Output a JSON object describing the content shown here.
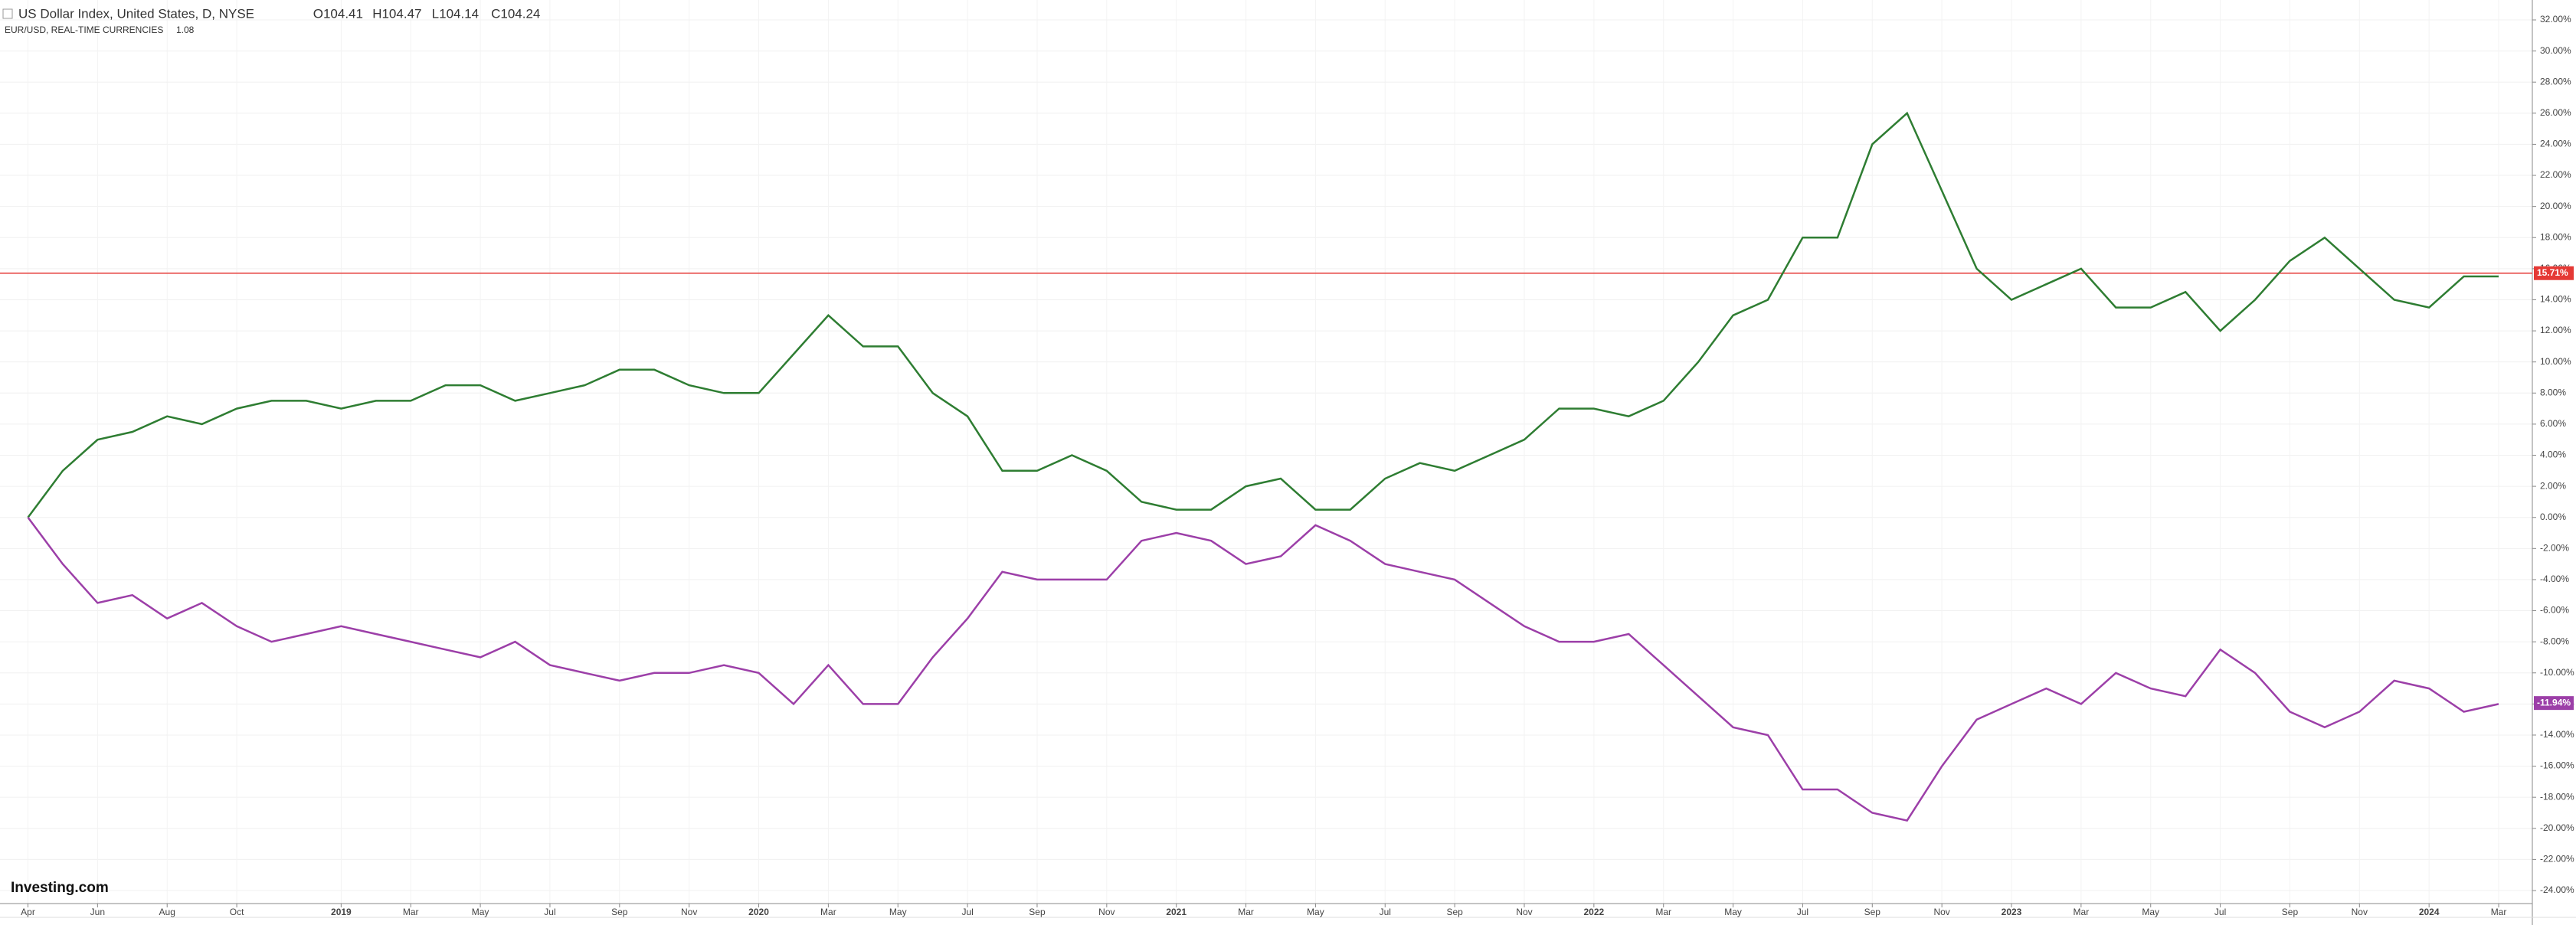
{
  "chart_data": {
    "type": "line",
    "title": "US Dollar Index, United States, D, NYSE",
    "ohlc": [
      "O104.41",
      "H104.47",
      "L104.14",
      "C104.24"
    ],
    "subtitle": "EUR/USD, REAL-TIME CURRENCIES",
    "subtitle_value": "1.08",
    "logo": "Investing.com",
    "categories": [
      "Apr",
      null,
      "Jun",
      null,
      "Aug",
      null,
      "Oct",
      null,
      null,
      "2019",
      null,
      "Mar",
      null,
      "May",
      null,
      "Jul",
      null,
      "Sep",
      null,
      "Nov",
      null,
      "2020",
      null,
      "Mar",
      null,
      "May",
      null,
      "Jul",
      null,
      "Sep",
      null,
      "Nov",
      null,
      "2021",
      null,
      "Mar",
      null,
      "May",
      null,
      "Jul",
      null,
      "Sep",
      null,
      "Nov",
      null,
      "2022",
      null,
      "Mar",
      null,
      "May",
      null,
      "Jul",
      null,
      "Sep",
      null,
      "Nov",
      null,
      "2023",
      null,
      "Mar",
      null,
      "May",
      null,
      "Jul",
      null,
      "Sep",
      null,
      "Nov",
      null,
      "2024",
      null,
      "Mar"
    ],
    "series": [
      {
        "name": "US Dollar Index",
        "color": "#2e7d32",
        "last_value": {
          "value": 15.71,
          "label": "15.71%"
        },
        "line_color": "#e53935",
        "values": [
          0,
          3,
          5,
          5.5,
          6.5,
          6,
          7,
          7.5,
          7.5,
          7,
          7.5,
          7.5,
          8.5,
          8.5,
          7.5,
          8,
          8.5,
          9.5,
          9.5,
          8.5,
          8,
          8,
          10.5,
          13,
          11,
          11,
          8,
          6.5,
          3,
          3,
          4,
          3,
          1,
          0.5,
          0.5,
          2,
          2.5,
          0.5,
          0.5,
          2.5,
          3.5,
          3,
          4,
          5,
          7,
          7,
          6.5,
          7.5,
          10,
          13,
          14,
          18,
          18,
          24,
          26,
          21,
          16,
          14,
          15,
          16,
          13.5,
          13.5,
          14.5,
          12,
          14,
          16.5,
          18,
          16,
          14,
          13.5,
          15.5,
          15.5
        ]
      },
      {
        "name": "EUR/USD",
        "color": "#9c3fa8",
        "last_value": {
          "value": -11.94,
          "label": "-11.94%"
        },
        "values": [
          0,
          -3,
          -5.5,
          -5,
          -6.5,
          -5.5,
          -7,
          -8,
          -7.5,
          -7,
          -7.5,
          -8,
          -8.5,
          -9,
          -8,
          -9.5,
          -10,
          -10.5,
          -10,
          -10,
          -9.5,
          -10,
          -12,
          -9.5,
          -12,
          -12,
          -9,
          -6.5,
          -3.5,
          -4,
          -4,
          -4,
          -1.5,
          -1,
          -1.5,
          -3,
          -2.5,
          -0.5,
          -1.5,
          -3,
          -3.5,
          -4,
          -5.5,
          -7,
          -8,
          -8,
          -7.5,
          -9.5,
          -11.5,
          -13.5,
          -14,
          -17.5,
          -17.5,
          -19,
          -19.5,
          -16,
          -13,
          -12,
          -11,
          -12,
          -10,
          -11,
          -11.5,
          -8.5,
          -10,
          -12.5,
          -13.5,
          -12.5,
          -10.5,
          -11,
          -12.5,
          -12
        ]
      }
    ],
    "ylim": [
      -24,
      32
    ],
    "yticks": [
      {
        "value": 32,
        "label": "32.00%"
      },
      {
        "value": 30,
        "label": "30.00%"
      },
      {
        "value": 28,
        "label": "28.00%"
      },
      {
        "value": 26,
        "label": "26.00%"
      },
      {
        "value": 24,
        "label": "24.00%"
      },
      {
        "value": 22,
        "label": "22.00%"
      },
      {
        "value": 20,
        "label": "20.00%"
      },
      {
        "value": 18,
        "label": "18.00%"
      },
      {
        "value": 16,
        "label": "16.00%"
      },
      {
        "value": 14,
        "label": "14.00%"
      },
      {
        "value": 12,
        "label": "12.00%"
      },
      {
        "value": 10,
        "label": "10.00%"
      },
      {
        "value": 8,
        "label": "8.00%"
      },
      {
        "value": 6,
        "label": "6.00%"
      },
      {
        "value": 4,
        "label": "4.00%"
      },
      {
        "value": 2,
        "label": "2.00%"
      },
      {
        "value": 0,
        "label": "0.00%"
      },
      {
        "value": -2,
        "label": "-2.00%"
      },
      {
        "value": -4,
        "label": "-4.00%"
      },
      {
        "value": -6,
        "label": "-6.00%"
      },
      {
        "value": -8,
        "label": "-8.00%"
      },
      {
        "value": -10,
        "label": "-10.00%"
      },
      {
        "value": -12,
        "label": "-12.00%"
      },
      {
        "value": -14,
        "label": "-14.00%"
      },
      {
        "value": -16,
        "label": "-16.00%"
      },
      {
        "value": -18,
        "label": "-18.00%"
      },
      {
        "value": -20,
        "label": "-20.00%"
      },
      {
        "value": -22,
        "label": "-22.00%"
      },
      {
        "value": -24,
        "label": "-24.00%"
      }
    ],
    "grid": true
  }
}
